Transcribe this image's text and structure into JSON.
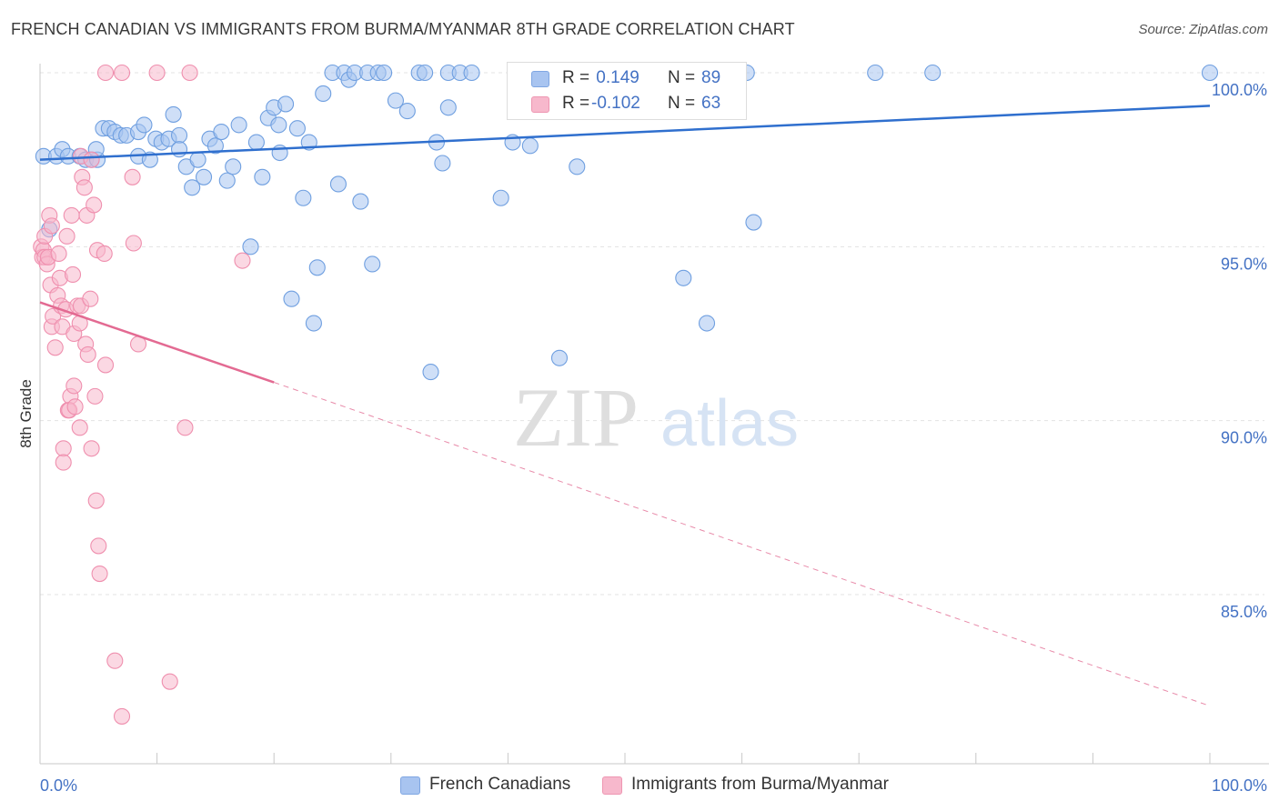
{
  "header": {
    "title": "FRENCH CANADIAN VS IMMIGRANTS FROM BURMA/MYANMAR 8TH GRADE CORRELATION CHART",
    "source": "Source: ZipAtlas.com"
  },
  "watermark": {
    "zip": "ZIP",
    "atlas": "atlas"
  },
  "legend": {
    "rows": [
      {
        "r_label": "R =",
        "r_value": " 0.149",
        "n_label": "N =",
        "n_value": "89",
        "color": "#a8c4f0"
      },
      {
        "r_label": "R =",
        "r_value": "-0.102",
        "n_label": "N =",
        "n_value": "63",
        "color": "#f7b8cc"
      }
    ]
  },
  "chart_data": {
    "type": "scatter",
    "title": "FRENCH CANADIAN VS IMMIGRANTS FROM BURMA/MYANMAR 8TH GRADE CORRELATION CHART",
    "xlabel": "",
    "ylabel": "8th Grade",
    "xlim": [
      0,
      100
    ],
    "ylim": [
      80.5,
      100.8
    ],
    "x_tick_labels": [
      "0.0%",
      "100.0%"
    ],
    "y_ticks": [
      {
        "value": 100,
        "label": "100.0%"
      },
      {
        "value": 95,
        "label": "95.0%"
      },
      {
        "value": 90,
        "label": "90.0%"
      },
      {
        "value": 85,
        "label": "85.0%"
      }
    ],
    "grid": true,
    "legend_position": "bottom",
    "series": [
      {
        "name": "French Canadians",
        "color": "#6f9fe0",
        "fill": "#a8c4f0",
        "trend": {
          "x": [
            0,
            100
          ],
          "y": [
            97.5,
            99.05
          ],
          "style": "solid"
        },
        "points": [
          [
            0.3,
            97.6
          ],
          [
            0.8,
            95.5
          ],
          [
            1.4,
            97.6
          ],
          [
            1.9,
            97.8
          ],
          [
            2.4,
            97.6
          ],
          [
            3.4,
            97.6
          ],
          [
            3.9,
            97.5
          ],
          [
            4.4,
            97.5
          ],
          [
            4.9,
            97.5
          ],
          [
            4.8,
            97.8
          ],
          [
            5.4,
            98.4
          ],
          [
            5.9,
            98.4
          ],
          [
            6.4,
            98.3
          ],
          [
            6.9,
            98.2
          ],
          [
            7.4,
            98.2
          ],
          [
            8.4,
            98.3
          ],
          [
            8.4,
            97.6
          ],
          [
            8.9,
            98.5
          ],
          [
            9.4,
            97.5
          ],
          [
            9.9,
            98.1
          ],
          [
            10.4,
            98.0
          ],
          [
            11.0,
            98.1
          ],
          [
            11.9,
            98.2
          ],
          [
            11.9,
            97.8
          ],
          [
            11.4,
            98.8
          ],
          [
            12.5,
            97.3
          ],
          [
            13.0,
            96.7
          ],
          [
            13.5,
            97.5
          ],
          [
            14.0,
            97.0
          ],
          [
            14.5,
            98.1
          ],
          [
            15.0,
            97.9
          ],
          [
            15.5,
            98.3
          ],
          [
            16.0,
            96.9
          ],
          [
            16.5,
            97.3
          ],
          [
            17.0,
            98.5
          ],
          [
            18.0,
            95.0
          ],
          [
            18.5,
            98.0
          ],
          [
            19.0,
            97.0
          ],
          [
            19.5,
            98.7
          ],
          [
            20.0,
            99.0
          ],
          [
            20.5,
            97.7
          ],
          [
            21.0,
            99.1
          ],
          [
            21.5,
            93.5
          ],
          [
            22.0,
            98.4
          ],
          [
            22.5,
            96.4
          ],
          [
            23.0,
            98.0
          ],
          [
            23.4,
            92.8
          ],
          [
            23.7,
            94.4
          ],
          [
            24.2,
            99.4
          ],
          [
            25.0,
            100.0
          ],
          [
            25.5,
            96.8
          ],
          [
            26.0,
            100.0
          ],
          [
            26.4,
            99.8
          ],
          [
            26.9,
            100.0
          ],
          [
            27.4,
            96.3
          ],
          [
            28.0,
            100.0
          ],
          [
            28.4,
            94.5
          ],
          [
            28.9,
            100.0
          ],
          [
            29.4,
            100.0
          ],
          [
            30.4,
            99.2
          ],
          [
            31.4,
            98.9
          ],
          [
            32.4,
            100.0
          ],
          [
            32.9,
            100.0
          ],
          [
            33.4,
            91.4
          ],
          [
            33.9,
            98.0
          ],
          [
            34.4,
            97.4
          ],
          [
            34.9,
            99.0
          ],
          [
            34.9,
            100.0
          ],
          [
            35.9,
            100.0
          ],
          [
            36.9,
            100.0
          ],
          [
            39.4,
            96.4
          ],
          [
            40.4,
            98.0
          ],
          [
            41.9,
            97.9
          ],
          [
            42.4,
            100.0
          ],
          [
            44.4,
            91.8
          ],
          [
            45.9,
            97.3
          ],
          [
            47.0,
            100.0
          ],
          [
            50.3,
            100.0
          ],
          [
            53.0,
            100.0
          ],
          [
            55.0,
            94.1
          ],
          [
            57.0,
            92.8
          ],
          [
            58.5,
            100.0
          ],
          [
            58.0,
            100.0
          ],
          [
            60.4,
            100.0
          ],
          [
            61.0,
            95.7
          ],
          [
            71.4,
            100.0
          ],
          [
            76.3,
            100.0
          ],
          [
            100.0,
            100.0
          ],
          [
            20.4,
            98.5
          ]
        ]
      },
      {
        "name": "Immigrants from Burma/Myanmar",
        "color": "#ef8fae",
        "fill": "#f7b8cc",
        "trend": {
          "x": [
            0,
            20
          ],
          "y": [
            93.4,
            91.1
          ],
          "style": "solid",
          "extended_to": [
            100,
            81.8
          ],
          "extended_style": "dashed"
        },
        "points": [
          [
            0.1,
            95.0
          ],
          [
            0.2,
            94.7
          ],
          [
            0.3,
            94.9
          ],
          [
            0.4,
            95.3
          ],
          [
            0.4,
            94.7
          ],
          [
            0.6,
            94.5
          ],
          [
            0.7,
            94.7
          ],
          [
            0.8,
            95.9
          ],
          [
            0.9,
            93.9
          ],
          [
            1.0,
            95.6
          ],
          [
            1.0,
            92.7
          ],
          [
            1.1,
            93.0
          ],
          [
            1.3,
            92.1
          ],
          [
            1.5,
            93.6
          ],
          [
            1.6,
            94.8
          ],
          [
            1.7,
            94.1
          ],
          [
            1.8,
            93.3
          ],
          [
            1.9,
            92.7
          ],
          [
            2.0,
            89.2
          ],
          [
            2.0,
            88.8
          ],
          [
            2.2,
            93.2
          ],
          [
            2.3,
            95.3
          ],
          [
            2.4,
            90.3
          ],
          [
            2.6,
            90.7
          ],
          [
            2.7,
            95.9
          ],
          [
            2.9,
            92.5
          ],
          [
            2.5,
            90.3
          ],
          [
            2.8,
            94.2
          ],
          [
            2.9,
            91.0
          ],
          [
            3.0,
            90.4
          ],
          [
            3.2,
            93.3
          ],
          [
            3.4,
            89.8
          ],
          [
            3.4,
            92.8
          ],
          [
            3.5,
            93.3
          ],
          [
            3.5,
            97.6
          ],
          [
            3.6,
            97.0
          ],
          [
            3.8,
            96.7
          ],
          [
            3.9,
            92.2
          ],
          [
            4.0,
            95.9
          ],
          [
            4.1,
            91.9
          ],
          [
            4.3,
            93.5
          ],
          [
            4.4,
            97.5
          ],
          [
            4.4,
            89.2
          ],
          [
            4.6,
            96.2
          ],
          [
            4.7,
            90.7
          ],
          [
            4.8,
            87.7
          ],
          [
            4.9,
            94.9
          ],
          [
            5.0,
            86.4
          ],
          [
            5.1,
            85.6
          ],
          [
            5.5,
            94.8
          ],
          [
            5.6,
            100.0
          ],
          [
            7.0,
            100.0
          ],
          [
            5.6,
            91.6
          ],
          [
            6.4,
            83.1
          ],
          [
            7.0,
            81.5
          ],
          [
            7.9,
            97.0
          ],
          [
            8.0,
            95.1
          ],
          [
            8.4,
            92.2
          ],
          [
            10.0,
            100.0
          ],
          [
            11.1,
            82.5
          ],
          [
            12.4,
            89.8
          ],
          [
            12.8,
            100.0
          ],
          [
            17.3,
            94.6
          ]
        ]
      }
    ]
  }
}
